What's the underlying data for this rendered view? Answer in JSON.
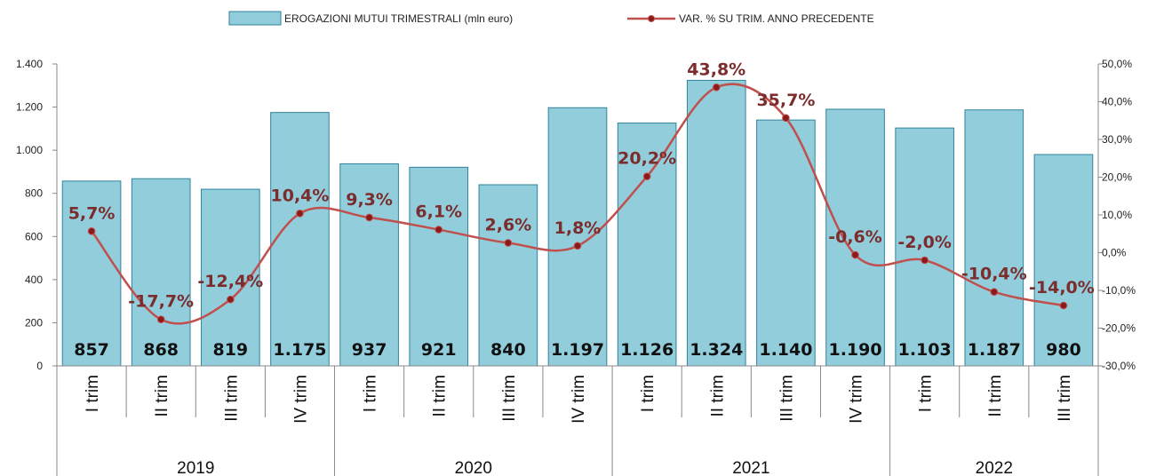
{
  "chart_data": {
    "type": "bar",
    "legend": {
      "placement": "top-center",
      "bar_series": "EROGAZIONI MUTUI TRIMESTRALI (mln euro)",
      "line_series": "VAR. % SU TRIM. ANNO PRECEDENTE"
    },
    "categories": [
      "I trim",
      "II trim",
      "III trim",
      "IV trim",
      "I trim",
      "II trim",
      "III trim",
      "IV trim",
      "I trim",
      "II trim",
      "III trim",
      "IV trim",
      "I trim",
      "II trim",
      "III trim"
    ],
    "years": [
      {
        "label": "2019",
        "count": 4
      },
      {
        "label": "2020",
        "count": 4
      },
      {
        "label": "2021",
        "count": 4
      },
      {
        "label": "2022",
        "count": 3
      }
    ],
    "series": [
      {
        "name": "EROGAZIONI MUTUI TRIMESTRALI (mln euro)",
        "type": "bar",
        "axis": "left",
        "values": [
          857,
          868,
          819,
          1175,
          937,
          921,
          840,
          1197,
          1126,
          1324,
          1140,
          1190,
          1103,
          1187,
          980
        ],
        "labels": [
          "857",
          "868",
          "819",
          "1.175",
          "937",
          "921",
          "840",
          "1.197",
          "1.126",
          "1.324",
          "1.140",
          "1.190",
          "1.103",
          "1.187",
          "980"
        ]
      },
      {
        "name": "VAR. % SU TRIM. ANNO PRECEDENTE",
        "type": "line",
        "axis": "right",
        "values": [
          5.7,
          -17.7,
          -12.4,
          10.4,
          9.3,
          6.1,
          2.6,
          1.8,
          20.2,
          43.8,
          35.7,
          -0.6,
          -2.0,
          -10.4,
          -14.0
        ],
        "labels": [
          "5,7%",
          "-17,7%",
          "-12,4%",
          "10,4%",
          "9,3%",
          "6,1%",
          "2,6%",
          "1,8%",
          "20,2%",
          "43,8%",
          "35,7%",
          "-0,6%",
          "-2,0%",
          "-10,4%",
          "-14,0%"
        ]
      }
    ],
    "y_left": {
      "ylim": [
        0,
        1400
      ],
      "ticks": [
        0,
        200,
        400,
        600,
        800,
        1000,
        1200,
        1400
      ],
      "tick_labels": [
        "0",
        "200",
        "400",
        "600",
        "800",
        "1.000",
        "1.200",
        "1.400"
      ]
    },
    "y_right": {
      "ylim": [
        -30,
        50
      ],
      "ticks": [
        -30,
        -20,
        -10,
        0,
        10,
        20,
        30,
        40,
        50
      ],
      "tick_labels": [
        "-30,0%",
        "-20,0%",
        "-10,0%",
        "0,0%",
        "10,0%",
        "20,0%",
        "30,0%",
        "40,0%",
        "50,0%"
      ]
    },
    "grid": false,
    "colors": {
      "bar_fill": "#92CDDC",
      "bar_stroke": "#31849B",
      "line": "#C0504D",
      "marker": "#8B1A1A",
      "pct_label": "#7B2C2C"
    }
  }
}
